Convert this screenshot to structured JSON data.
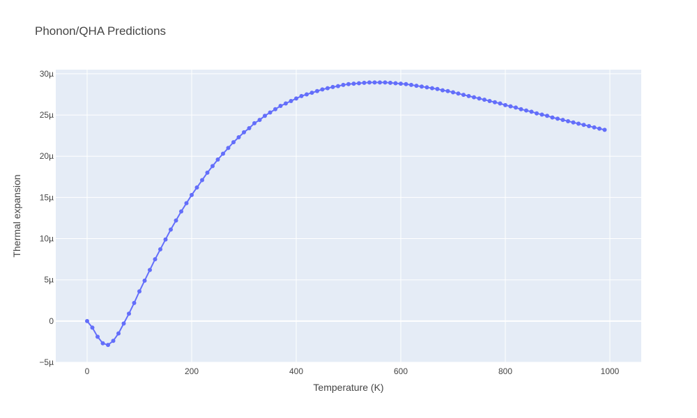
{
  "chart_data": {
    "type": "line",
    "title": "Phonon/QHA Predictions",
    "xlabel": "Temperature (K)",
    "ylabel": "Thermal expansion",
    "xlim": [
      -60,
      1060
    ],
    "ylim": [
      -5e-06,
      3.05e-05
    ],
    "x_ticks": [
      0,
      200,
      400,
      600,
      800,
      1000
    ],
    "x_tick_labels": [
      "0",
      "200",
      "400",
      "600",
      "800",
      "1000"
    ],
    "y_ticks": [
      -5e-06,
      0,
      5e-06,
      1e-05,
      1.5e-05,
      2e-05,
      2.5e-05,
      3e-05
    ],
    "y_tick_labels": [
      "−5µ",
      "0",
      "5µ",
      "10µ",
      "15µ",
      "20µ",
      "25µ",
      "30µ"
    ],
    "grid": true,
    "legend": "none",
    "colors": {
      "series": "#636efa",
      "plot_bg": "#e5ecf6",
      "grid": "#ffffff",
      "text": "#444444"
    },
    "series": [
      {
        "mode": "lines+markers",
        "x": [
          0,
          10,
          20,
          30,
          40,
          50,
          60,
          70,
          80,
          90,
          100,
          110,
          120,
          130,
          140,
          150,
          160,
          170,
          180,
          190,
          200,
          210,
          220,
          230,
          240,
          250,
          260,
          270,
          280,
          290,
          300,
          310,
          320,
          330,
          340,
          350,
          360,
          370,
          380,
          390,
          400,
          410,
          420,
          430,
          440,
          450,
          460,
          470,
          480,
          490,
          500,
          510,
          520,
          530,
          540,
          550,
          560,
          570,
          580,
          590,
          600,
          610,
          620,
          630,
          640,
          650,
          660,
          670,
          680,
          690,
          700,
          710,
          720,
          730,
          740,
          750,
          760,
          770,
          780,
          790,
          800,
          810,
          820,
          830,
          840,
          850,
          860,
          870,
          880,
          890,
          900,
          910,
          920,
          930,
          940,
          950,
          960,
          970,
          980,
          990
        ],
        "y": [
          0,
          -8e-07,
          -1.9e-06,
          -2.7e-06,
          -2.9e-06,
          -2.4e-06,
          -1.5e-06,
          -3e-07,
          9e-07,
          2.2e-06,
          3.6e-06,
          4.9e-06,
          6.2e-06,
          7.5e-06,
          8.7e-06,
          9.9e-06,
          1.11e-05,
          1.22e-05,
          1.33e-05,
          1.43e-05,
          1.53e-05,
          1.62e-05,
          1.71e-05,
          1.8e-05,
          1.88e-05,
          1.96e-05,
          2.03e-05,
          2.1e-05,
          2.17e-05,
          2.23e-05,
          2.29e-05,
          2.34e-05,
          2.4e-05,
          2.44e-05,
          2.49e-05,
          2.53e-05,
          2.57e-05,
          2.61e-05,
          2.64e-05,
          2.67e-05,
          2.7e-05,
          2.73e-05,
          2.75e-05,
          2.77e-05,
          2.79e-05,
          2.81e-05,
          2.825e-05,
          2.84e-05,
          2.85e-05,
          2.865e-05,
          2.875e-05,
          2.88e-05,
          2.885e-05,
          2.89e-05,
          2.895e-05,
          2.895e-05,
          2.895e-05,
          2.895e-05,
          2.89e-05,
          2.885e-05,
          2.88e-05,
          2.875e-05,
          2.865e-05,
          2.855e-05,
          2.845e-05,
          2.835e-05,
          2.825e-05,
          2.815e-05,
          2.8e-05,
          2.79e-05,
          2.775e-05,
          2.76e-05,
          2.745e-05,
          2.73e-05,
          2.715e-05,
          2.7e-05,
          2.685e-05,
          2.67e-05,
          2.655e-05,
          2.64e-05,
          2.62e-05,
          2.605e-05,
          2.59e-05,
          2.57e-05,
          2.555e-05,
          2.54e-05,
          2.52e-05,
          2.505e-05,
          2.49e-05,
          2.47e-05,
          2.455e-05,
          2.44e-05,
          2.425e-05,
          2.41e-05,
          2.395e-05,
          2.38e-05,
          2.365e-05,
          2.35e-05,
          2.335e-05,
          2.32e-05
        ]
      }
    ]
  }
}
